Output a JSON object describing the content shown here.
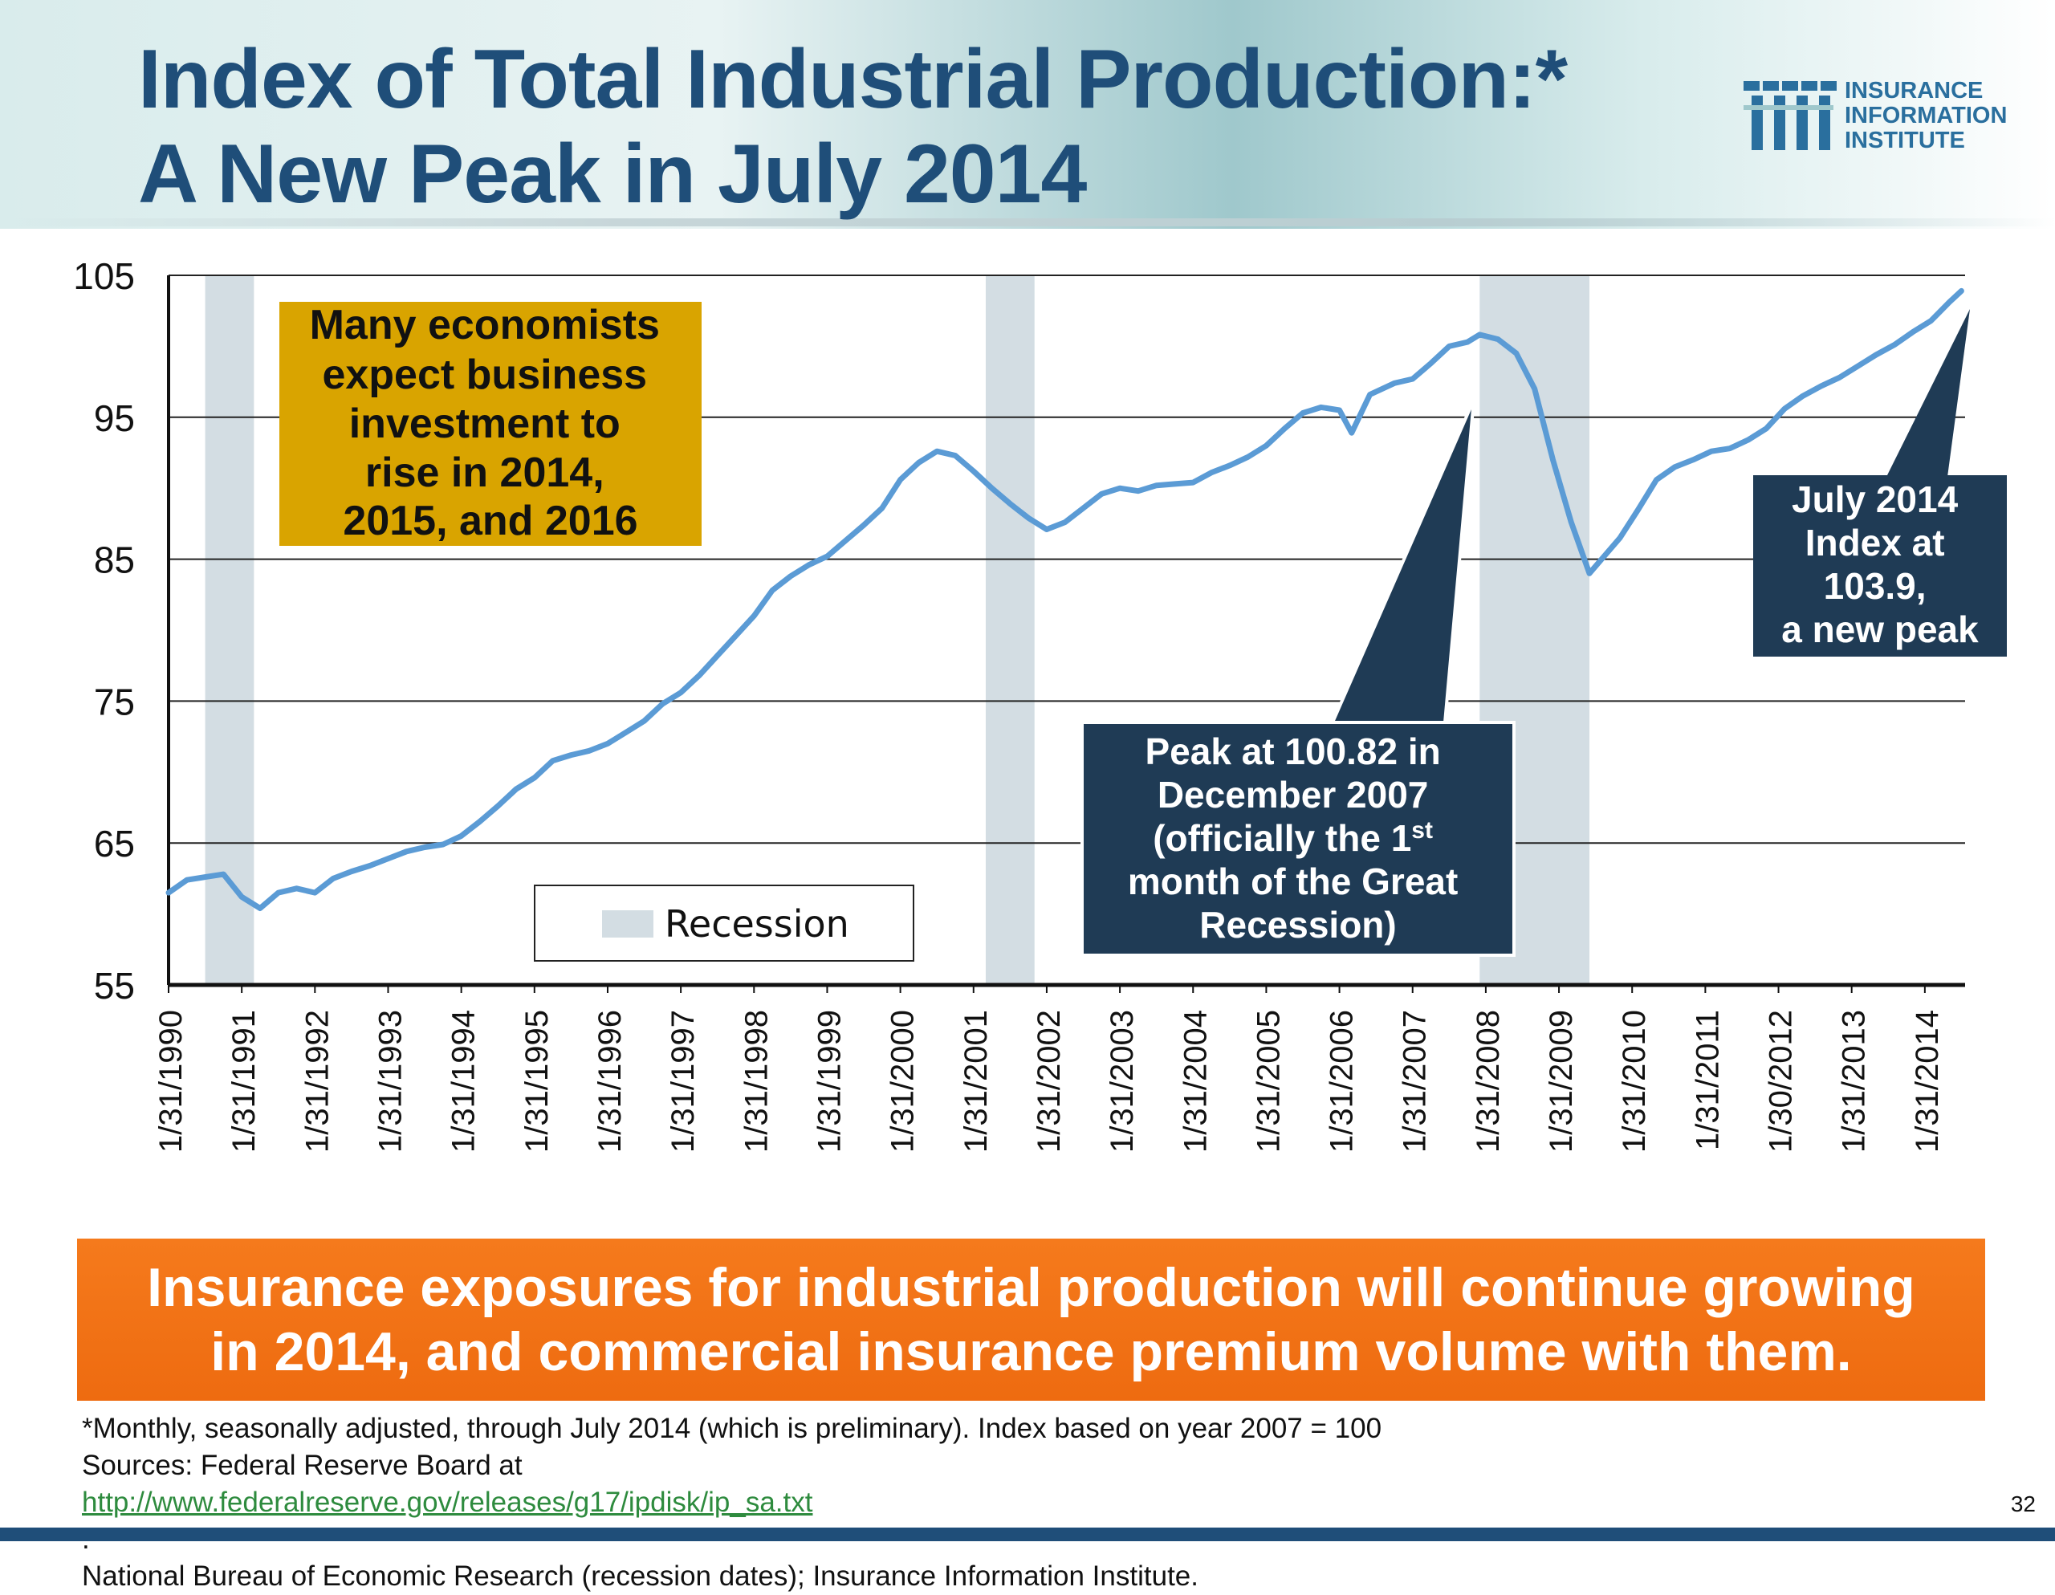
{
  "header": {
    "title_line1": "Index of Total Industrial Production:*",
    "title_line2": "A New Peak in July 2014",
    "logo": {
      "line1": "INSURANCE",
      "line2": "INFORMATION",
      "line3": "INSTITUTE",
      "color": "#2a6f9e"
    }
  },
  "chart_data": {
    "type": "line",
    "title": "",
    "xlabel": "",
    "ylabel": "",
    "ylim": [
      55,
      105
    ],
    "y_ticks": [
      55,
      65,
      75,
      85,
      95,
      105
    ],
    "grid": true,
    "x_ticks": [
      "1/31/1990",
      "1/31/1991",
      "1/31/1992",
      "1/31/1993",
      "1/31/1994",
      "1/31/1995",
      "1/31/1996",
      "1/31/1997",
      "1/31/1998",
      "1/31/1999",
      "1/31/2000",
      "1/31/2001",
      "1/31/2002",
      "1/31/2003",
      "1/31/2004",
      "1/31/2005",
      "1/31/2006",
      "1/31/2007",
      "1/31/2008",
      "1/31/2009",
      "1/31/2010",
      "1/31/2011",
      "1/30/2012",
      "1/31/2013",
      "1/31/2014"
    ],
    "series": [
      {
        "name": "",
        "color": "#5b9bd5",
        "points": [
          [
            "1990-01",
            61.5
          ],
          [
            "1990-04",
            62.4
          ],
          [
            "1990-07",
            62.6
          ],
          [
            "1990-10",
            62.8
          ],
          [
            "1991-01",
            61.2
          ],
          [
            "1991-04",
            60.4
          ],
          [
            "1991-07",
            61.5
          ],
          [
            "1991-10",
            61.8
          ],
          [
            "1992-01",
            61.5
          ],
          [
            "1992-04",
            62.5
          ],
          [
            "1992-07",
            63.0
          ],
          [
            "1992-10",
            63.4
          ],
          [
            "1993-01",
            63.9
          ],
          [
            "1993-04",
            64.4
          ],
          [
            "1993-07",
            64.7
          ],
          [
            "1993-10",
            64.9
          ],
          [
            "1994-01",
            65.5
          ],
          [
            "1994-04",
            66.5
          ],
          [
            "1994-07",
            67.6
          ],
          [
            "1994-10",
            68.8
          ],
          [
            "1995-01",
            69.6
          ],
          [
            "1995-04",
            70.8
          ],
          [
            "1995-07",
            71.2
          ],
          [
            "1995-10",
            71.5
          ],
          [
            "1996-01",
            72.0
          ],
          [
            "1996-04",
            72.8
          ],
          [
            "1996-07",
            73.6
          ],
          [
            "1996-10",
            74.8
          ],
          [
            "1997-01",
            75.6
          ],
          [
            "1997-04",
            76.8
          ],
          [
            "1997-07",
            78.2
          ],
          [
            "1997-10",
            79.6
          ],
          [
            "1998-01",
            81.0
          ],
          [
            "1998-04",
            82.8
          ],
          [
            "1998-07",
            83.8
          ],
          [
            "1998-10",
            84.6
          ],
          [
            "1999-01",
            85.2
          ],
          [
            "1999-04",
            86.3
          ],
          [
            "1999-07",
            87.4
          ],
          [
            "1999-10",
            88.6
          ],
          [
            "2000-01",
            90.6
          ],
          [
            "2000-04",
            91.8
          ],
          [
            "2000-07",
            92.6
          ],
          [
            "2000-10",
            92.3
          ],
          [
            "2001-01",
            91.2
          ],
          [
            "2001-04",
            90.0
          ],
          [
            "2001-07",
            88.9
          ],
          [
            "2001-10",
            87.9
          ],
          [
            "2002-01",
            87.1
          ],
          [
            "2002-04",
            87.6
          ],
          [
            "2002-07",
            88.6
          ],
          [
            "2002-10",
            89.6
          ],
          [
            "2003-01",
            90.0
          ],
          [
            "2003-04",
            89.8
          ],
          [
            "2003-07",
            90.2
          ],
          [
            "2003-10",
            90.3
          ],
          [
            "2004-01",
            90.4
          ],
          [
            "2004-04",
            91.1
          ],
          [
            "2004-07",
            91.6
          ],
          [
            "2004-10",
            92.2
          ],
          [
            "2005-01",
            93.0
          ],
          [
            "2005-04",
            94.2
          ],
          [
            "2005-07",
            95.3
          ],
          [
            "2005-10",
            95.7
          ],
          [
            "2006-01",
            95.5
          ],
          [
            "2006-03",
            93.9
          ],
          [
            "2006-06",
            96.6
          ],
          [
            "2006-10",
            97.4
          ],
          [
            "2007-01",
            97.7
          ],
          [
            "2007-04",
            98.8
          ],
          [
            "2007-07",
            100.0
          ],
          [
            "2007-10",
            100.3
          ],
          [
            "2007-12",
            100.82
          ],
          [
            "2008-03",
            100.5
          ],
          [
            "2008-06",
            99.5
          ],
          [
            "2008-09",
            97.0
          ],
          [
            "2008-12",
            92.0
          ],
          [
            "2009-03",
            87.6
          ],
          [
            "2009-06",
            84.0
          ],
          [
            "2009-08",
            85.0
          ],
          [
            "2009-11",
            86.5
          ],
          [
            "2010-02",
            88.5
          ],
          [
            "2010-05",
            90.6
          ],
          [
            "2010-08",
            91.5
          ],
          [
            "2010-11",
            92.0
          ],
          [
            "2011-02",
            92.6
          ],
          [
            "2011-05",
            92.8
          ],
          [
            "2011-08",
            93.4
          ],
          [
            "2011-11",
            94.2
          ],
          [
            "2012-02",
            95.6
          ],
          [
            "2012-05",
            96.5
          ],
          [
            "2012-08",
            97.2
          ],
          [
            "2012-11",
            97.8
          ],
          [
            "2013-02",
            98.6
          ],
          [
            "2013-05",
            99.4
          ],
          [
            "2013-08",
            100.1
          ],
          [
            "2013-11",
            101.0
          ],
          [
            "2014-02",
            101.8
          ],
          [
            "2014-05",
            103.1
          ],
          [
            "2014-07",
            103.9
          ]
        ]
      }
    ],
    "recessions": [
      {
        "start": "1990-07",
        "end": "1991-03"
      },
      {
        "start": "2001-03",
        "end": "2001-11"
      },
      {
        "start": "2007-12",
        "end": "2009-06"
      }
    ],
    "recession_color": "#d3dde3",
    "legend": {
      "label": "Recession",
      "placement": "bottom-center"
    },
    "annotations": {
      "economists": {
        "line1": "Many economists",
        "line2": "expect business",
        "line3": "investment to",
        "line4": "rise in 2014,",
        "line5": "2015, and 2016",
        "color": "#d9a400"
      },
      "peak2007": {
        "line1": "Peak at 100.82 in",
        "line2": "December 2007",
        "line3a": "(officially  the 1",
        "line3sup": "st",
        "line4": "month of the Great",
        "line5": "Recession)",
        "color": "#1f3b55"
      },
      "july2014": {
        "line1": "July 2014",
        "line2": "Index at",
        "line3": "103.9,",
        "line4": "a new peak",
        "color": "#1f3b55"
      }
    }
  },
  "banner": {
    "line1": "Insurance exposures for industrial production will continue growing",
    "line2": "in 2014, and commercial insurance premium volume with them.",
    "color": "#f27318"
  },
  "footnote": {
    "line1": "*Monthly, seasonally adjusted, through July 2014 (which is preliminary). Index based on year 2007 = 100",
    "sources_prefix": "Sources: Federal Reserve Board at ",
    "sources_link": "http://www.federalreserve.gov/releases/g17/ipdisk/ip_sa.txt",
    "sources_suffix": " .",
    "line3": "National Bureau of Economic Research (recession dates); Insurance Information Institute."
  },
  "page_number": "32"
}
